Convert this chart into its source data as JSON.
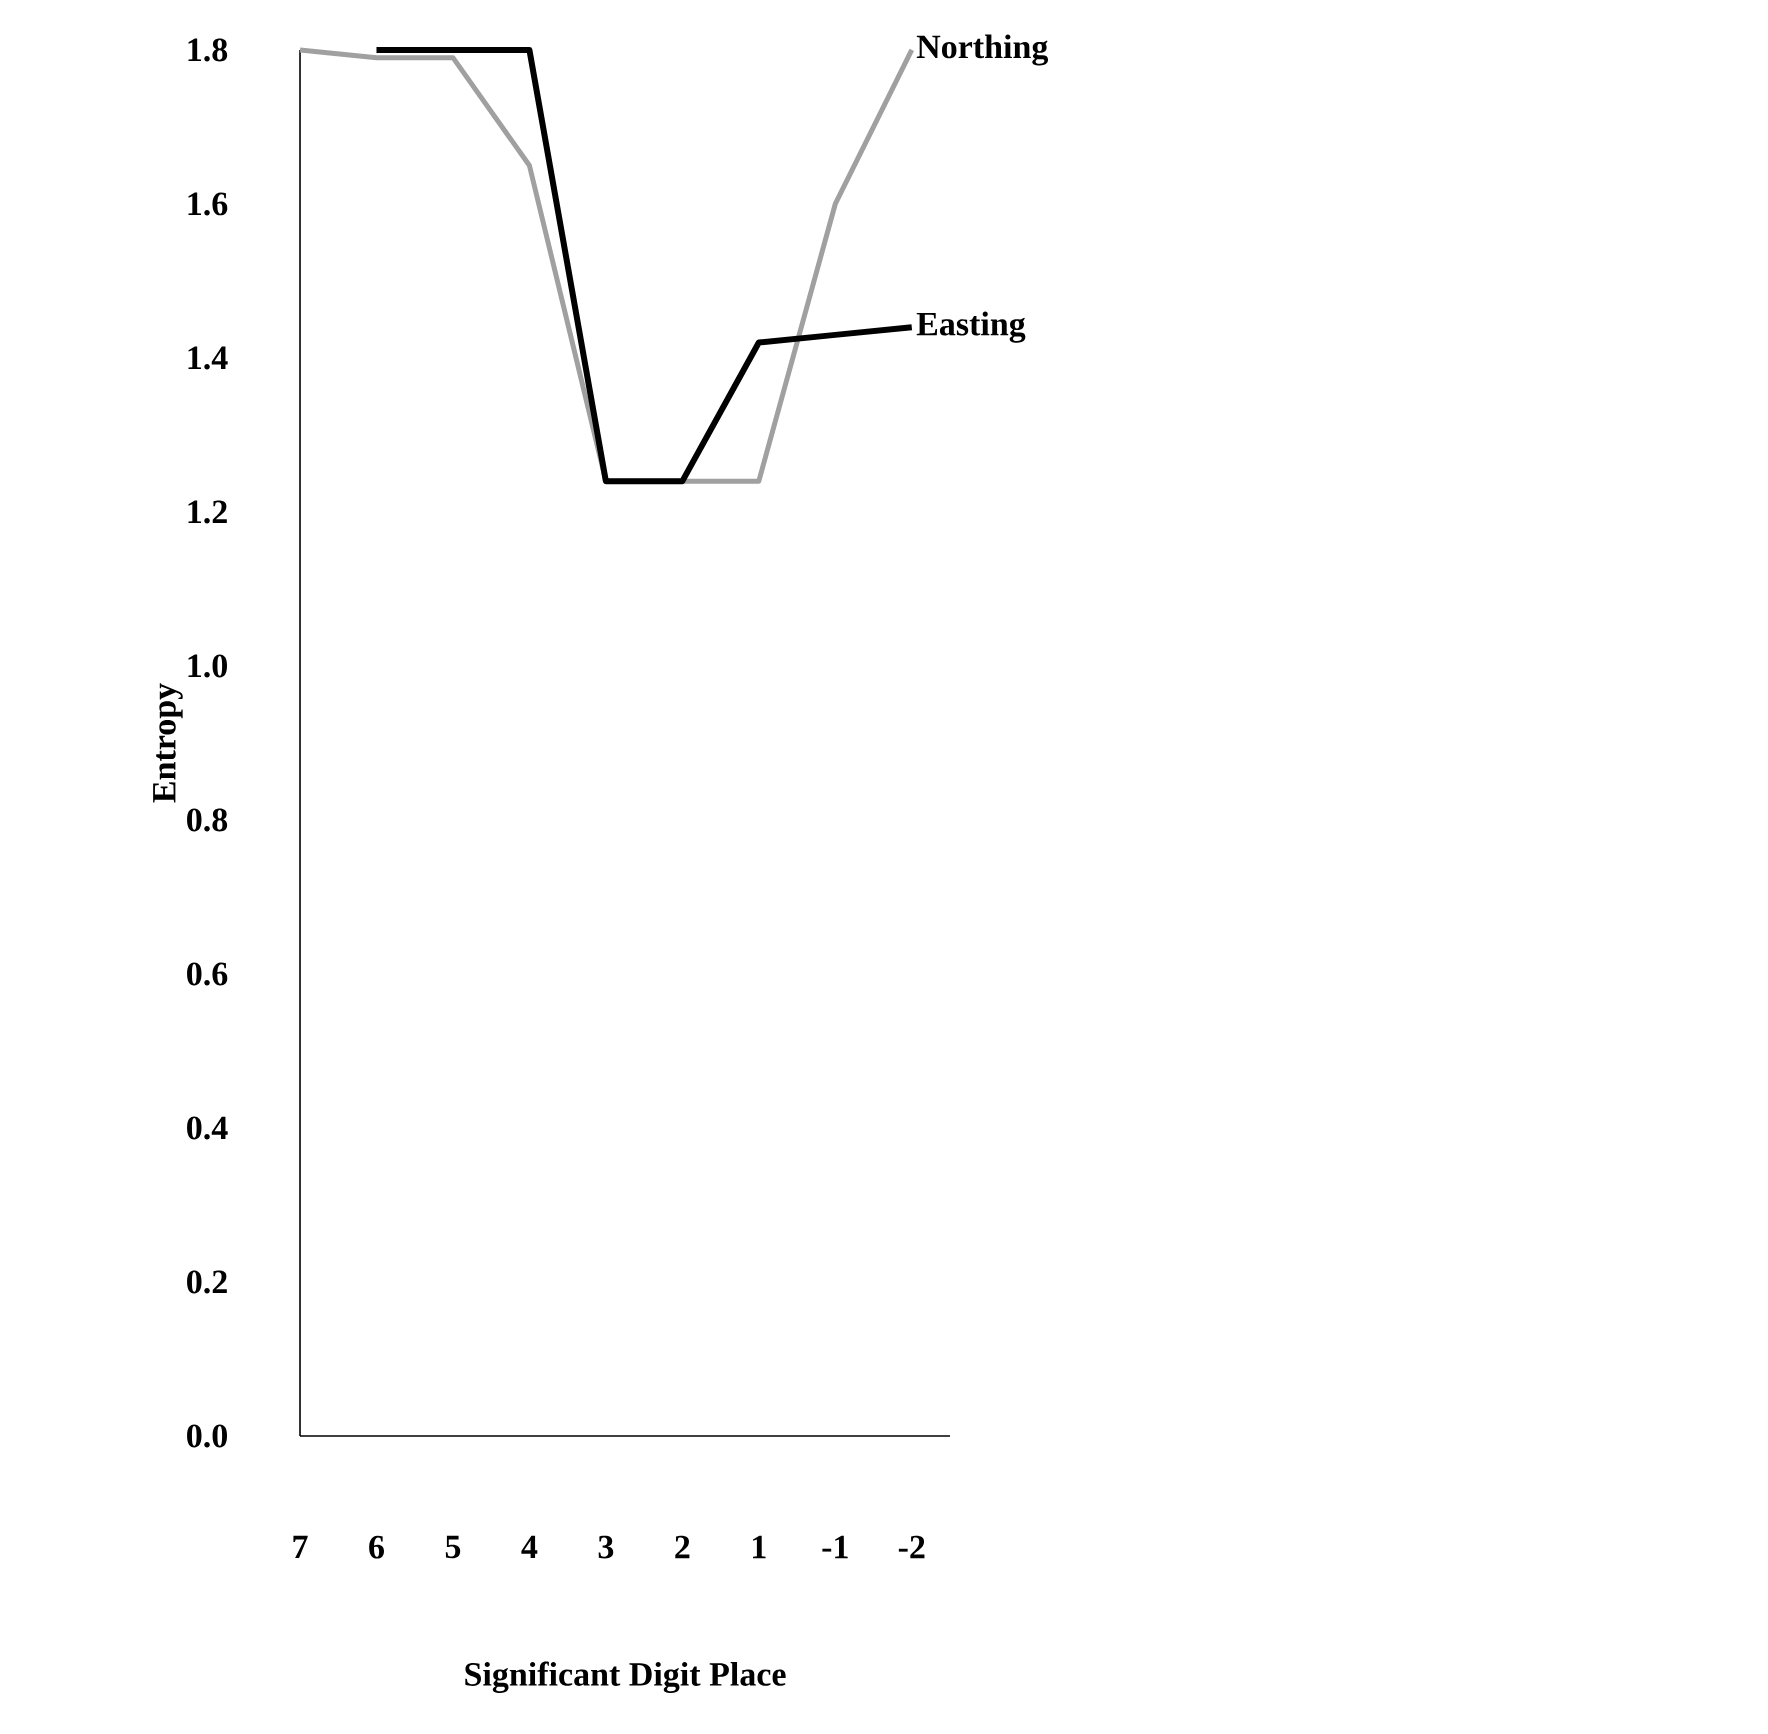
{
  "chart_data": {
    "type": "line",
    "xlabel": "Significant Digit Place",
    "ylabel": "Entropy",
    "categories": [
      "7",
      "6",
      "5",
      "4",
      "3",
      "2",
      "1",
      "-1",
      "-2"
    ],
    "series": [
      {
        "name": "Northing",
        "color": "#a0a0a0",
        "values": [
          1.8,
          1.79,
          1.79,
          1.65,
          1.24,
          1.24,
          1.24,
          1.6,
          1.8
        ]
      },
      {
        "name": "Easting",
        "color": "#000000",
        "values": [
          null,
          1.8,
          1.8,
          1.8,
          1.24,
          1.24,
          1.42,
          1.43,
          1.44
        ]
      }
    ],
    "ylim": [
      0,
      1.8
    ],
    "yticks": [
      {
        "value": 0,
        "label": "0.0"
      },
      {
        "value": 0.2,
        "label": "0.2"
      },
      {
        "value": 0.4,
        "label": "0.4"
      },
      {
        "value": 0.6,
        "label": "0.6"
      },
      {
        "value": 0.8,
        "label": "0.8"
      },
      {
        "value": 1.0,
        "label": "1.0"
      },
      {
        "value": 1.2,
        "label": "1.2"
      },
      {
        "value": 1.4,
        "label": "1.4"
      },
      {
        "value": 1.6,
        "label": "1.6"
      },
      {
        "value": 1.8,
        "label": "1.8"
      }
    ],
    "grid": false,
    "legend": false,
    "marker": "none",
    "line_style": "solid"
  }
}
